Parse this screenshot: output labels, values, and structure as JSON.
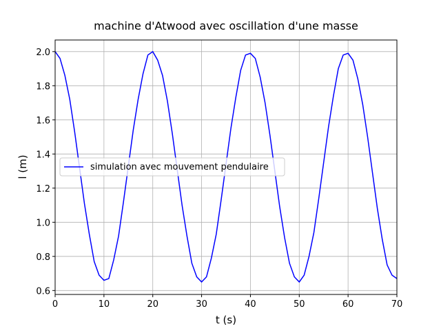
{
  "chart_data": {
    "type": "line",
    "title": "machine d'Atwood avec oscillation d'une masse",
    "x_label": "t (s)",
    "y_label": "l (m)",
    "x": [
      0,
      1,
      2,
      3,
      4,
      5,
      6,
      7,
      8,
      9,
      10,
      11,
      12,
      13,
      14,
      15,
      16,
      17,
      18,
      19,
      20,
      21,
      22,
      23,
      24,
      25,
      26,
      27,
      28,
      29,
      30,
      31,
      32,
      33,
      34,
      35,
      36,
      37,
      38,
      39,
      40,
      41,
      42,
      43,
      44,
      45,
      46,
      47,
      48,
      49,
      50,
      51,
      52,
      53,
      54,
      55,
      56,
      57,
      58,
      59,
      60,
      61,
      62,
      63,
      64,
      65,
      66,
      67,
      68,
      69,
      70
    ],
    "series": [
      {
        "name": "simulation avec mouvement pendulaire",
        "color": "#0000ff",
        "values": [
          2.0,
          1.96,
          1.86,
          1.72,
          1.53,
          1.32,
          1.11,
          0.93,
          0.77,
          0.69,
          0.66,
          0.67,
          0.78,
          0.92,
          1.12,
          1.33,
          1.54,
          1.72,
          1.87,
          1.98,
          2.0,
          1.95,
          1.86,
          1.71,
          1.52,
          1.31,
          1.1,
          0.92,
          0.76,
          0.68,
          0.65,
          0.68,
          0.79,
          0.93,
          1.13,
          1.34,
          1.55,
          1.73,
          1.89,
          1.98,
          1.99,
          1.96,
          1.85,
          1.7,
          1.51,
          1.3,
          1.09,
          0.91,
          0.76,
          0.68,
          0.65,
          0.69,
          0.8,
          0.94,
          1.14,
          1.35,
          1.56,
          1.74,
          1.9,
          1.98,
          1.99,
          1.95,
          1.84,
          1.69,
          1.5,
          1.29,
          1.08,
          0.9,
          0.75,
          0.69,
          0.67
        ]
      }
    ],
    "xlim": [
      0,
      70
    ],
    "ylim": [
      0.577,
      2.068
    ],
    "xticks": [
      0,
      10,
      20,
      30,
      40,
      50,
      60,
      70
    ],
    "yticks": [
      {
        "value": 0.6,
        "label": "0.6"
      },
      {
        "value": 0.8,
        "label": "0.8"
      },
      {
        "value": 1.0,
        "label": "1.0"
      },
      {
        "value": 1.2,
        "label": "1.2"
      },
      {
        "value": 1.4,
        "label": "1.4"
      },
      {
        "value": 1.6,
        "label": "1.6"
      },
      {
        "value": 1.8,
        "label": "1.8"
      },
      {
        "value": 2.0,
        "label": "2.0"
      }
    ],
    "grid": true,
    "legend": "center left"
  }
}
